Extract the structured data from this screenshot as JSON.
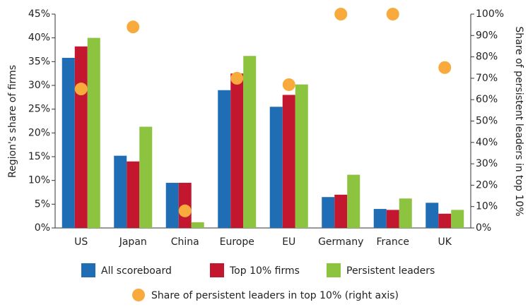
{
  "chart_data": {
    "type": "bar",
    "y_label": "Region's share of firms",
    "y2_label": "Share of persistent leaders in top 10%",
    "categories": [
      "US",
      "Japan",
      "China",
      "Europe",
      "EU",
      "Germany",
      "France",
      "UK"
    ],
    "series": [
      {
        "name": "All scoreboard",
        "color": "#1f6db4",
        "values": [
          35.8,
          15.2,
          9.5,
          29,
          25.5,
          6.5,
          4,
          5.3
        ]
      },
      {
        "name": "Top 10% firms",
        "color": "#c3162f",
        "values": [
          38.2,
          14,
          9.5,
          32.5,
          28,
          7,
          3.8,
          3
        ]
      },
      {
        "name": "Persistent leaders",
        "color": "#8cc43f",
        "values": [
          40,
          21.3,
          1.2,
          36.2,
          30.2,
          11.2,
          6.2,
          3.8
        ]
      },
      {
        "name": "Share of persistent leaders in top 10% (right axis)",
        "color": "#f8ab3c",
        "type": "scatter",
        "axis": "y2",
        "values": [
          65,
          94,
          8,
          70,
          67,
          100,
          100,
          75
        ]
      }
    ],
    "ylim": [
      0,
      45
    ],
    "yticks": [
      {
        "value": 0,
        "label": "0%"
      },
      {
        "value": 5,
        "label": "5%"
      },
      {
        "value": 10,
        "label": "10%"
      },
      {
        "value": 15,
        "label": "15%"
      },
      {
        "value": 20,
        "label": "20%"
      },
      {
        "value": 25,
        "label": "25%"
      },
      {
        "value": 30,
        "label": "30%"
      },
      {
        "value": 35,
        "label": "35%"
      },
      {
        "value": 40,
        "label": "40%"
      },
      {
        "value": 45,
        "label": "45%"
      }
    ],
    "y2lim": [
      0,
      100
    ],
    "y2ticks": [
      {
        "value": 0,
        "label": "0%"
      },
      {
        "value": 10,
        "label": "10%"
      },
      {
        "value": 20,
        "label": "20%"
      },
      {
        "value": 30,
        "label": "30%"
      },
      {
        "value": 40,
        "label": "40%"
      },
      {
        "value": 50,
        "label": "50%"
      },
      {
        "value": 60,
        "label": "60%"
      },
      {
        "value": 70,
        "label": "70%"
      },
      {
        "value": 80,
        "label": "80%"
      },
      {
        "value": 90,
        "label": "90%"
      },
      {
        "value": 100,
        "label": "100%"
      }
    ],
    "grid": false
  }
}
